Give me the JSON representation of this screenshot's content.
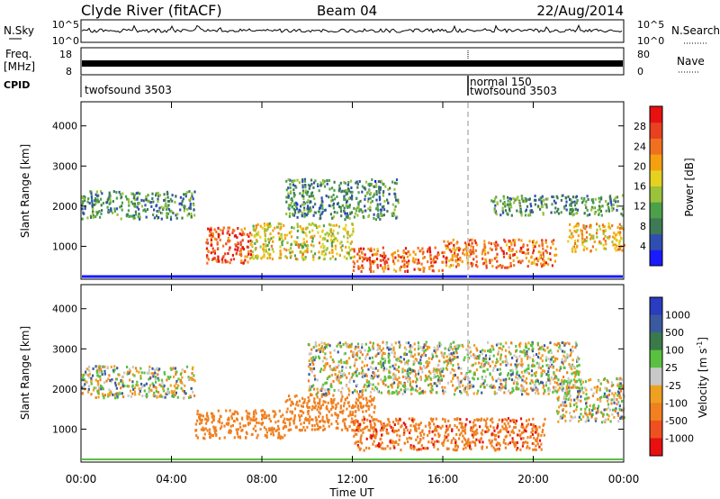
{
  "header": {
    "station": "Clyde River (fitACF)",
    "beam": "Beam 04",
    "date": "22/Aug/2014"
  },
  "strips": {
    "nsky": {
      "label": "N.Sky",
      "right_label": "N.Search",
      "ticks_left": [
        "10^5",
        "10^0"
      ],
      "ticks_right": [
        "10^5",
        "10^0"
      ]
    },
    "freq": {
      "label_line1": "Freq.",
      "label_line2": "[MHz]",
      "right_label": "Nave",
      "ticks_left": [
        "18",
        "8"
      ],
      "ticks_right": [
        "80",
        "0"
      ]
    },
    "cpid": {
      "label": "CPID",
      "segments": [
        {
          "start_hour": 0,
          "text": "twofsound 3503"
        },
        {
          "start_hour": 17.1,
          "text": "normal 150",
          "text2": "twofsound 3503"
        }
      ]
    }
  },
  "colors": {
    "power_scale": [
      "#1a1aff",
      "#2f4fb0",
      "#3d7a55",
      "#4da04a",
      "#9ac23a",
      "#e6d020",
      "#f5a010",
      "#f07020",
      "#e84020",
      "#e81010"
    ],
    "velocity_scale": [
      "#2a3cc0",
      "#3a5aa0",
      "#3a7a4a",
      "#5ac040",
      "#c8c8c8",
      "#f0a020",
      "#f08020",
      "#f05020",
      "#e81010"
    ]
  },
  "chart_data": [
    {
      "type": "heatmap",
      "title": "",
      "xlabel": "Time UT",
      "ylabel": "Slant Range [km]",
      "xlim": [
        0,
        24
      ],
      "ylim": [
        180,
        4600
      ],
      "x_tick_labels": [
        "00:00",
        "04:00",
        "08:00",
        "12:00",
        "16:00",
        "20:00",
        "00:00"
      ],
      "y_ticks": [
        1000,
        2000,
        3000,
        4000
      ],
      "colorbar": {
        "label": "Power [dB]",
        "ticks": [
          4,
          8,
          12,
          16,
          20,
          24,
          28
        ],
        "range": [
          0,
          32
        ]
      },
      "echo_regions": [
        {
          "t0": 0,
          "t1": 5,
          "r0": 1700,
          "r1": 2400,
          "value": 10
        },
        {
          "t0": 5.5,
          "t1": 7.5,
          "r0": 600,
          "r1": 1500,
          "value": 27
        },
        {
          "t0": 7.5,
          "t1": 12,
          "r0": 700,
          "r1": 1600,
          "value": 17
        },
        {
          "t0": 9,
          "t1": 14,
          "r0": 1700,
          "r1": 2700,
          "value": 9
        },
        {
          "t0": 12,
          "t1": 16,
          "r0": 400,
          "r1": 1000,
          "value": 25
        },
        {
          "t0": 16,
          "t1": 21,
          "r0": 500,
          "r1": 1200,
          "value": 24
        },
        {
          "t0": 18,
          "t1": 24,
          "r0": 1800,
          "r1": 2300,
          "value": 10
        },
        {
          "t0": 21.5,
          "t1": 24,
          "r0": 900,
          "r1": 1600,
          "value": 20
        }
      ]
    },
    {
      "type": "heatmap",
      "title": "",
      "xlabel": "Time UT",
      "ylabel": "Slant Range [km]",
      "xlim": [
        0,
        24
      ],
      "ylim": [
        180,
        4600
      ],
      "x_tick_labels": [
        "00:00",
        "04:00",
        "08:00",
        "12:00",
        "16:00",
        "20:00",
        "00:00"
      ],
      "y_ticks": [
        1000,
        2000,
        3000,
        4000
      ],
      "colorbar": {
        "label": "Velocity [m s^-1]",
        "tick_labels": [
          "1000",
          "500",
          "100",
          "25",
          "-25",
          "-100",
          "-500",
          "-1000"
        ]
      },
      "echo_regions": [
        {
          "t0": 0,
          "t1": 5,
          "r0": 1800,
          "r1": 2600,
          "value": 0
        },
        {
          "t0": 5,
          "t1": 9,
          "r0": 800,
          "r1": 1500,
          "value": -300
        },
        {
          "t0": 9,
          "t1": 13,
          "r0": 1000,
          "r1": 1900,
          "value": -250
        },
        {
          "t0": 12,
          "t1": 20.5,
          "r0": 500,
          "r1": 1300,
          "value": -400
        },
        {
          "t0": 10,
          "t1": 22,
          "r0": 1900,
          "r1": 3200,
          "value": 0
        },
        {
          "t0": 21,
          "t1": 24,
          "r0": 1200,
          "r1": 2300,
          "value": 0
        }
      ]
    }
  ]
}
